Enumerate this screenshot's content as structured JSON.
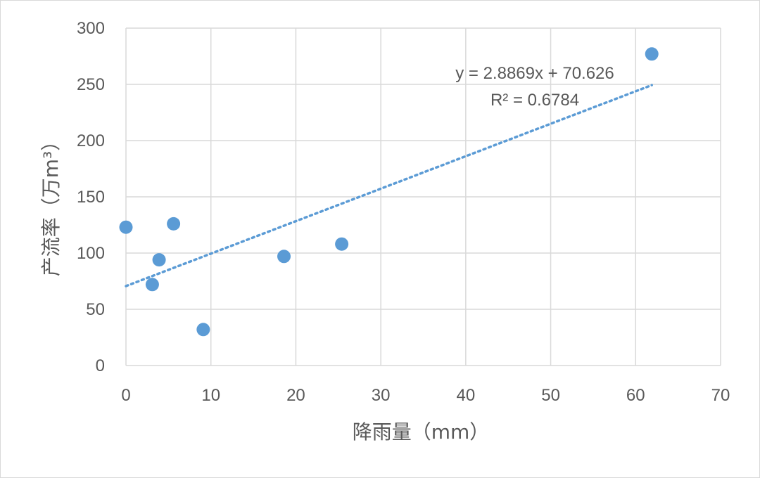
{
  "chart_data": {
    "type": "scatter",
    "xlabel": "降雨量（mm）",
    "ylabel": "产流率（万m³）",
    "xlim": [
      0,
      70
    ],
    "ylim": [
      0,
      300
    ],
    "x_ticks": [
      "0",
      "10",
      "20",
      "30",
      "40",
      "50",
      "60",
      "70"
    ],
    "y_ticks": [
      "0",
      "50",
      "100",
      "150",
      "200",
      "250",
      "300"
    ],
    "grid": true,
    "legend": "none",
    "series": [
      {
        "marker_color": "#5b9bd5",
        "points": [
          {
            "x": 0,
            "y": 123
          },
          {
            "x": 3.1,
            "y": 72
          },
          {
            "x": 3.9,
            "y": 94
          },
          {
            "x": 5.6,
            "y": 126
          },
          {
            "x": 9.1,
            "y": 32
          },
          {
            "x": 18.6,
            "y": 97
          },
          {
            "x": 25.4,
            "y": 108
          },
          {
            "x": 61.9,
            "y": 277
          }
        ]
      }
    ],
    "trendline": {
      "type": "linear",
      "slope": 2.8869,
      "intercept": 70.626,
      "x_range": [
        0,
        61.9
      ],
      "equation": "y = 2.8869x + 70.626",
      "r_squared": "R² = 0.6784",
      "color": "#5b9bd5",
      "style": "dotted"
    }
  }
}
